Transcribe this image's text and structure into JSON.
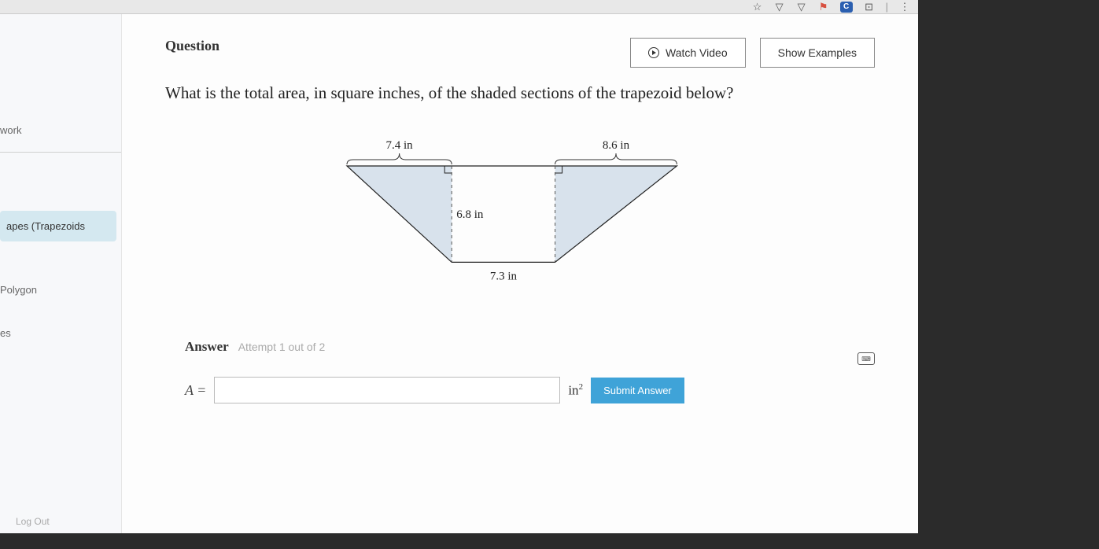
{
  "browser": {
    "icons": [
      "star",
      "down1",
      "down2",
      "puzzle",
      "c-badge",
      "ext",
      "divider",
      "dots"
    ]
  },
  "sidebar": {
    "items": [
      {
        "label": "work",
        "active": false
      },
      {
        "label": "apes (Trapezoids",
        "active": true
      },
      {
        "label": "Polygon",
        "active": false
      },
      {
        "label": "es",
        "active": false
      }
    ],
    "logout": "Log Out"
  },
  "question": {
    "label": "Question",
    "watch_video": "Watch Video",
    "show_examples": "Show Examples",
    "text": "What is the total area, in square inches, of the shaded sections of the trapezoid below?"
  },
  "figure": {
    "type": "trapezoid-diagram",
    "top_left_label": "7.4 in",
    "top_right_label": "8.6 in",
    "height_label": "6.8 in",
    "bottom_label": "7.3 in",
    "dims": {
      "scale": 18,
      "left_tri_base": 7.4,
      "right_tri_base": 8.6,
      "rect_width": 7.3,
      "height": 6.8
    },
    "colors": {
      "shaded_fill": "#d8e2ec",
      "stroke": "#222222",
      "dash": "#555555",
      "brace": "#333333",
      "background": "#fdfdfd"
    },
    "stroke_width": 1.2,
    "label_fontsize": 15
  },
  "answer": {
    "section_label": "Answer",
    "attempt_text": "Attempt 1 out of 2",
    "var": "A =",
    "value": "",
    "unit_html": "in²",
    "submit": "Submit Answer"
  }
}
